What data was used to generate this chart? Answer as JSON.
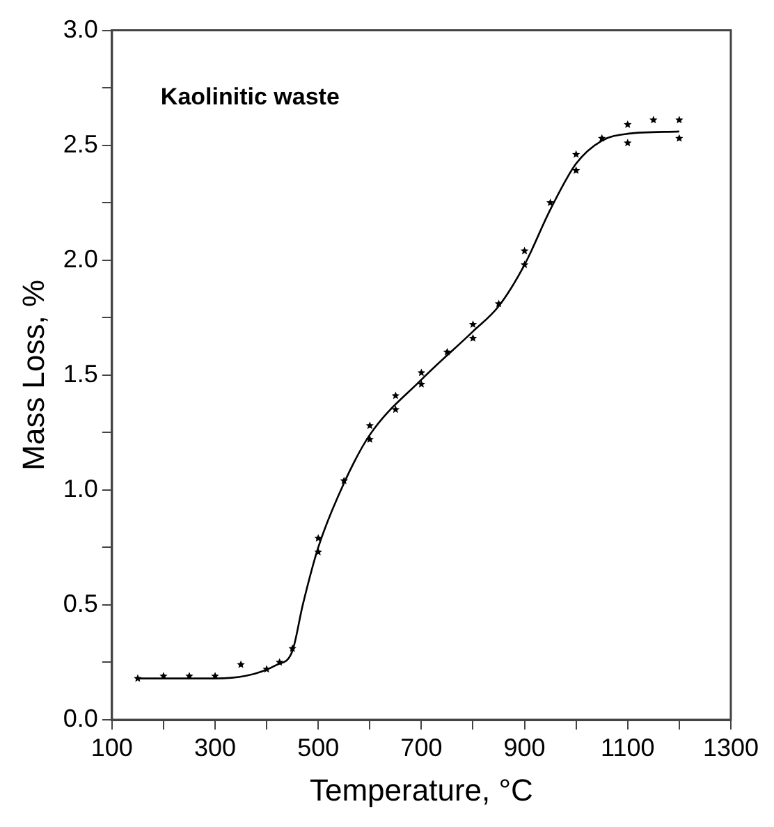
{
  "chart_data": {
    "type": "scatter",
    "xlabel": "Temperature, °C",
    "ylabel": "Mass Loss, %",
    "annotations": [
      "Kaolinitic waste"
    ],
    "xlim": [
      100,
      1300
    ],
    "xticks": [
      100,
      {
        "value": 200,
        "label": null
      },
      300,
      {
        "value": 400,
        "label": null
      },
      500,
      {
        "value": 600,
        "label": null
      },
      700,
      {
        "value": 800,
        "label": null
      },
      900,
      {
        "value": 1000,
        "label": null
      },
      1100,
      {
        "value": 1200,
        "label": null
      },
      1300
    ],
    "ylim": [
      0,
      3
    ],
    "yticks": [
      {
        "value": 0,
        "label": "0.0"
      },
      {
        "value": 0.25,
        "label": null
      },
      {
        "value": 0.5,
        "label": "0.5"
      },
      {
        "value": 0.75,
        "label": null
      },
      {
        "value": 1,
        "label": "1.0"
      },
      {
        "value": 1.25,
        "label": null
      },
      {
        "value": 1.5,
        "label": "1.5"
      },
      {
        "value": 1.75,
        "label": null
      },
      {
        "value": 2,
        "label": "2.0"
      },
      {
        "value": 2.25,
        "label": null
      },
      {
        "value": 2.5,
        "label": "2.5"
      },
      {
        "value": 2.75,
        "label": null
      },
      {
        "value": 3,
        "label": "3.0"
      }
    ],
    "grid": false,
    "legend": false,
    "series": [
      {
        "marker": "star",
        "color": "#000000",
        "x": [
          150,
          200,
          250,
          300,
          350,
          400,
          425,
          450,
          500,
          500,
          550,
          600,
          600,
          650,
          650,
          700,
          700,
          750,
          800,
          800,
          850,
          900,
          900,
          950,
          1000,
          1000,
          1050,
          1100,
          1100,
          1150,
          1200,
          1200
        ],
        "values": [
          0.18,
          0.19,
          0.19,
          0.19,
          0.24,
          0.22,
          0.25,
          0.31,
          0.73,
          0.79,
          1.04,
          1.22,
          1.28,
          1.35,
          1.41,
          1.46,
          1.51,
          1.6,
          1.66,
          1.72,
          1.81,
          1.98,
          2.04,
          2.25,
          2.39,
          2.46,
          2.53,
          2.51,
          2.59,
          2.61,
          2.53,
          2.61
        ]
      },
      {
        "type": "line",
        "marker": "none",
        "line_style": "solid",
        "color": "#000000",
        "x": [
          150,
          300,
          420,
          450,
          470,
          500,
          550,
          600,
          700,
          800,
          850,
          900,
          950,
          1000,
          1050,
          1100,
          1200
        ],
        "values": [
          0.18,
          0.18,
          0.24,
          0.3,
          0.5,
          0.75,
          1.03,
          1.24,
          1.48,
          1.69,
          1.8,
          1.98,
          2.22,
          2.42,
          2.52,
          2.55,
          2.56
        ]
      }
    ]
  }
}
